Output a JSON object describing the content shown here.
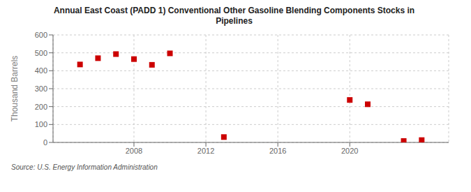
{
  "chart_data": {
    "type": "scatter",
    "title": "Annual East Coast (PADD 1) Conventional Other Gasoline Blending Components Stocks in\nPipelines",
    "ylabel": "Thousand Barrels",
    "annotations": [
      "Source: U.S. Energy Information Administration"
    ],
    "x": [
      2005,
      2006,
      2007,
      2008,
      2009,
      2010,
      2013,
      2020,
      2021,
      2023,
      2024
    ],
    "values": [
      435,
      470,
      493,
      465,
      433,
      497,
      30,
      237,
      213,
      8,
      13
    ],
    "color": "#cc0000",
    "marker": "square",
    "xlim": [
      2003.5,
      2025.5
    ],
    "xticks": [
      2008,
      2012,
      2016,
      2020
    ],
    "ylim": [
      0,
      600
    ],
    "yticks": [
      0,
      100,
      200,
      300,
      400,
      500,
      600
    ],
    "grid": true
  }
}
